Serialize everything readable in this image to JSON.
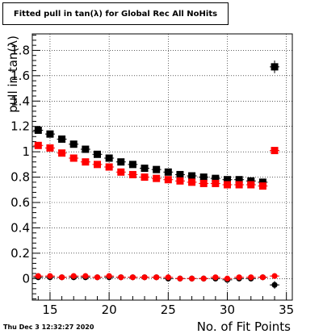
{
  "title": "Fitted pull in tan(λ) for Global Rec All NoHits",
  "datestamp": "Thu Dec  3 12:32:27 2020",
  "chart_data": {
    "type": "scatter",
    "title": "Fitted pull in tan(λ) for Global Rec All NoHits",
    "xlabel": "No. of Fit Points",
    "ylabel": "pull in tan(λ)",
    "xlim": [
      13.5,
      35.5
    ],
    "ylim": [
      -0.17,
      1.93
    ],
    "xticks": [
      15,
      20,
      25,
      30,
      35
    ],
    "yticks": [
      0,
      0.2,
      0.4,
      0.6,
      0.8,
      1,
      1.2,
      1.4,
      1.6,
      1.8
    ],
    "ytick_labels": [
      "0",
      "0.2",
      "0.4",
      "0.6",
      "0.8",
      "1",
      "1.2",
      "1.4",
      "1.6",
      "1.8"
    ],
    "grid": true,
    "series": [
      {
        "color": "#000000",
        "marker": "square",
        "x": [
          14,
          15,
          16,
          17,
          18,
          19,
          20,
          21,
          22,
          23,
          24,
          25,
          26,
          27,
          28,
          29,
          30,
          31,
          32,
          33,
          34
        ],
        "y": [
          1.17,
          1.14,
          1.1,
          1.06,
          1.02,
          0.98,
          0.95,
          0.92,
          0.9,
          0.87,
          0.86,
          0.84,
          0.82,
          0.81,
          0.8,
          0.79,
          0.78,
          0.78,
          0.77,
          0.76,
          1.67
        ],
        "err": [
          0.015,
          0.012,
          0.012,
          0.012,
          0.012,
          0.012,
          0.012,
          0.012,
          0.012,
          0.012,
          0.012,
          0.012,
          0.012,
          0.012,
          0.012,
          0.012,
          0.012,
          0.015,
          0.015,
          0.015,
          0.05
        ]
      },
      {
        "color": "#ff0000",
        "marker": "square",
        "x": [
          14,
          15,
          16,
          17,
          18,
          19,
          20,
          21,
          22,
          23,
          24,
          25,
          26,
          27,
          28,
          29,
          30,
          31,
          32,
          33,
          34
        ],
        "y": [
          1.05,
          1.03,
          0.99,
          0.95,
          0.92,
          0.9,
          0.88,
          0.84,
          0.82,
          0.8,
          0.79,
          0.78,
          0.77,
          0.76,
          0.75,
          0.75,
          0.74,
          0.74,
          0.74,
          0.73,
          1.01
        ],
        "err": [
          0.015,
          0.012,
          0.012,
          0.012,
          0.012,
          0.012,
          0.012,
          0.012,
          0.012,
          0.012,
          0.012,
          0.012,
          0.012,
          0.012,
          0.012,
          0.012,
          0.012,
          0.015,
          0.015,
          0.015,
          0.02
        ]
      },
      {
        "color": "#000000",
        "marker": "circle",
        "x": [
          14,
          15,
          16,
          17,
          18,
          19,
          20,
          21,
          22,
          23,
          24,
          25,
          26,
          27,
          28,
          29,
          30,
          31,
          32,
          33,
          34
        ],
        "y": [
          0.01,
          0.01,
          0.01,
          0.01,
          0.01,
          0.01,
          0.01,
          0.01,
          0.01,
          0.01,
          0.01,
          0.0,
          0.0,
          0.0,
          0.0,
          0.0,
          -0.01,
          0.0,
          0.0,
          0.01,
          -0.05
        ],
        "err": [
          0.01,
          0.01,
          0.01,
          0.01,
          0.01,
          0.01,
          0.01,
          0.01,
          0.01,
          0.01,
          0.01,
          0.01,
          0.01,
          0.01,
          0.01,
          0.01,
          0.01,
          0.01,
          0.01,
          0.01,
          0.03
        ]
      },
      {
        "color": "#ff0000",
        "marker": "circle",
        "x": [
          14,
          15,
          16,
          17,
          18,
          19,
          20,
          21,
          22,
          23,
          24,
          25,
          26,
          27,
          28,
          29,
          30,
          31,
          32,
          33,
          34
        ],
        "y": [
          0.02,
          0.02,
          0.01,
          0.02,
          0.02,
          0.01,
          0.02,
          0.01,
          0.01,
          0.01,
          0.01,
          0.01,
          0.0,
          0.0,
          0.0,
          0.01,
          0.0,
          0.01,
          0.01,
          0.01,
          0.02
        ],
        "err": [
          0.01,
          0.01,
          0.01,
          0.01,
          0.01,
          0.01,
          0.01,
          0.01,
          0.01,
          0.01,
          0.01,
          0.01,
          0.01,
          0.01,
          0.01,
          0.01,
          0.01,
          0.01,
          0.01,
          0.01,
          0.02
        ]
      }
    ]
  }
}
